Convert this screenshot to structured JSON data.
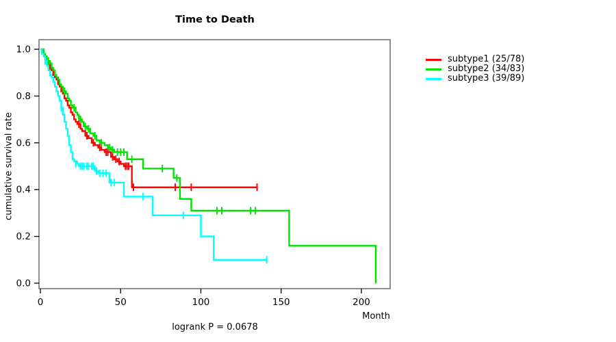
{
  "title": "Time to Death",
  "footer": "logrank P = 0.0678",
  "axes": {
    "x": {
      "label": "Month"
    },
    "y": {
      "label": "cumulative survival rate"
    }
  },
  "chart_data": {
    "type": "line",
    "variant": "kaplan-meier-step",
    "title": "Time to Death",
    "xlabel": "Month",
    "ylabel": "cumulative survival rate",
    "annotation": "logrank P = 0.0678",
    "xlim": [
      0,
      218
    ],
    "ylim": [
      0.0,
      1.0
    ],
    "x_ticks": [
      0,
      50,
      100,
      150,
      200
    ],
    "y_ticks": [
      0.0,
      0.2,
      0.4,
      0.6,
      0.8,
      1.0
    ],
    "grid": false,
    "legend_position": "right-outside",
    "censor_mark": "vertical-tick",
    "series": [
      {
        "name": "subtype1 (25/78)",
        "events": 25,
        "n": 78,
        "color": "#ff0000",
        "steps": [
          [
            0,
            1.0
          ],
          [
            1,
            0.99
          ],
          [
            2,
            0.97
          ],
          [
            3,
            0.96
          ],
          [
            4,
            0.95
          ],
          [
            5,
            0.93
          ],
          [
            6,
            0.92
          ],
          [
            7,
            0.91
          ],
          [
            8,
            0.89
          ],
          [
            9,
            0.88
          ],
          [
            10,
            0.87
          ],
          [
            11,
            0.85
          ],
          [
            12,
            0.84
          ],
          [
            13,
            0.82
          ],
          [
            14,
            0.81
          ],
          [
            15,
            0.79
          ],
          [
            16,
            0.78
          ],
          [
            17,
            0.76
          ],
          [
            18,
            0.75
          ],
          [
            19,
            0.73
          ],
          [
            20,
            0.72
          ],
          [
            21,
            0.7
          ],
          [
            22,
            0.69
          ],
          [
            23,
            0.68
          ],
          [
            25,
            0.66
          ],
          [
            26,
            0.65
          ],
          [
            28,
            0.63
          ],
          [
            30,
            0.62
          ],
          [
            32,
            0.6
          ],
          [
            34,
            0.59
          ],
          [
            36,
            0.58
          ],
          [
            38,
            0.57
          ],
          [
            40,
            0.56
          ],
          [
            44,
            0.54
          ],
          [
            46,
            0.53
          ],
          [
            48,
            0.52
          ],
          [
            50,
            0.51
          ],
          [
            52,
            0.5
          ],
          [
            57,
            0.41
          ]
        ],
        "end": 135,
        "censors": [
          [
            6,
            0.92
          ],
          [
            24,
            0.68
          ],
          [
            29,
            0.63
          ],
          [
            33,
            0.6
          ],
          [
            37,
            0.58
          ],
          [
            41,
            0.56
          ],
          [
            42,
            0.56
          ],
          [
            45,
            0.54
          ],
          [
            47,
            0.53
          ],
          [
            49,
            0.52
          ],
          [
            53,
            0.5
          ],
          [
            54,
            0.5
          ],
          [
            55,
            0.5
          ],
          [
            58,
            0.41
          ],
          [
            84,
            0.41
          ],
          [
            94,
            0.41
          ],
          [
            135,
            0.41
          ]
        ]
      },
      {
        "name": "subtype2 (34/83)",
        "events": 34,
        "n": 83,
        "color": "#00e100",
        "steps": [
          [
            0,
            1.0
          ],
          [
            2,
            0.98
          ],
          [
            3,
            0.97
          ],
          [
            4,
            0.95
          ],
          [
            6,
            0.94
          ],
          [
            7,
            0.92
          ],
          [
            8,
            0.91
          ],
          [
            9,
            0.89
          ],
          [
            10,
            0.88
          ],
          [
            11,
            0.87
          ],
          [
            12,
            0.85
          ],
          [
            13,
            0.84
          ],
          [
            14,
            0.82
          ],
          [
            16,
            0.81
          ],
          [
            17,
            0.79
          ],
          [
            18,
            0.78
          ],
          [
            19,
            0.76
          ],
          [
            20,
            0.75
          ],
          [
            22,
            0.73
          ],
          [
            23,
            0.72
          ],
          [
            24,
            0.7
          ],
          [
            26,
            0.69
          ],
          [
            27,
            0.67
          ],
          [
            29,
            0.66
          ],
          [
            31,
            0.64
          ],
          [
            33,
            0.63
          ],
          [
            35,
            0.61
          ],
          [
            37,
            0.6
          ],
          [
            40,
            0.59
          ],
          [
            42,
            0.58
          ],
          [
            44,
            0.57
          ],
          [
            46,
            0.56
          ],
          [
            54,
            0.53
          ],
          [
            64,
            0.49
          ],
          [
            83,
            0.45
          ],
          [
            87,
            0.36
          ],
          [
            94,
            0.31
          ],
          [
            155,
            0.16
          ],
          [
            209,
            0.0
          ]
        ],
        "end": 209,
        "censors": [
          [
            5,
            0.95
          ],
          [
            15,
            0.82
          ],
          [
            21,
            0.75
          ],
          [
            25,
            0.7
          ],
          [
            28,
            0.67
          ],
          [
            30,
            0.66
          ],
          [
            34,
            0.63
          ],
          [
            38,
            0.6
          ],
          [
            43,
            0.58
          ],
          [
            45,
            0.57
          ],
          [
            48,
            0.56
          ],
          [
            50,
            0.56
          ],
          [
            52,
            0.56
          ],
          [
            57,
            0.53
          ],
          [
            76,
            0.49
          ],
          [
            85,
            0.45
          ],
          [
            110,
            0.31
          ],
          [
            113,
            0.31
          ],
          [
            131,
            0.31
          ],
          [
            134,
            0.31
          ]
        ]
      },
      {
        "name": "subtype3 (39/89)",
        "events": 39,
        "n": 89,
        "color": "#00ffff",
        "steps": [
          [
            0,
            1.0
          ],
          [
            1,
            0.98
          ],
          [
            2,
            0.97
          ],
          [
            3,
            0.95
          ],
          [
            4,
            0.93
          ],
          [
            5,
            0.91
          ],
          [
            6,
            0.89
          ],
          [
            7,
            0.88
          ],
          [
            8,
            0.86
          ],
          [
            9,
            0.84
          ],
          [
            10,
            0.82
          ],
          [
            11,
            0.8
          ],
          [
            12,
            0.78
          ],
          [
            13,
            0.75
          ],
          [
            14,
            0.72
          ],
          [
            15,
            0.69
          ],
          [
            16,
            0.66
          ],
          [
            17,
            0.63
          ],
          [
            18,
            0.59
          ],
          [
            19,
            0.56
          ],
          [
            20,
            0.53
          ],
          [
            21,
            0.52
          ],
          [
            23,
            0.51
          ],
          [
            24,
            0.5
          ],
          [
            34,
            0.48
          ],
          [
            36,
            0.47
          ],
          [
            43,
            0.43
          ],
          [
            52,
            0.37
          ],
          [
            70,
            0.29
          ],
          [
            100,
            0.2
          ],
          [
            108,
            0.1
          ]
        ],
        "end": 141,
        "censors": [
          [
            3,
            0.95
          ],
          [
            13,
            0.75
          ],
          [
            22,
            0.51
          ],
          [
            25,
            0.5
          ],
          [
            26,
            0.5
          ],
          [
            27,
            0.5
          ],
          [
            29,
            0.5
          ],
          [
            30,
            0.5
          ],
          [
            32,
            0.5
          ],
          [
            33,
            0.5
          ],
          [
            35,
            0.48
          ],
          [
            37,
            0.47
          ],
          [
            39,
            0.47
          ],
          [
            41,
            0.47
          ],
          [
            44,
            0.43
          ],
          [
            46,
            0.43
          ],
          [
            64,
            0.37
          ],
          [
            89,
            0.29
          ],
          [
            141,
            0.1
          ]
        ]
      }
    ]
  }
}
